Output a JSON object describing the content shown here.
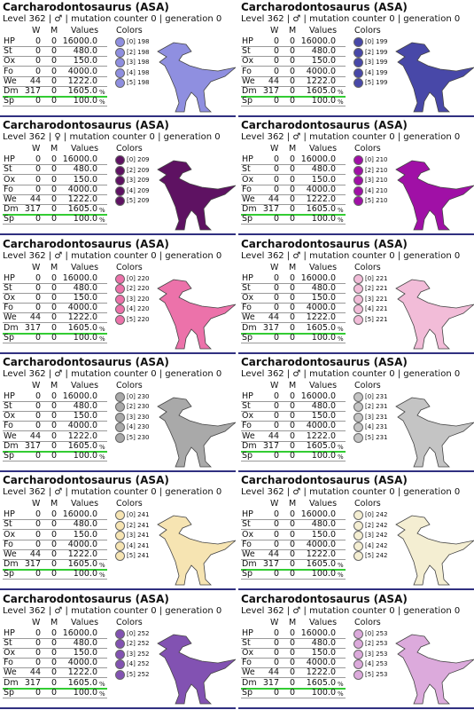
{
  "cards": [
    {
      "title": "Carcharodontosaurus (ASA)",
      "subtitle": "Level 362 | ♂ | mutation counter 0 | generation 0",
      "headers": [
        "W",
        "M",
        "Values",
        "Colors"
      ],
      "stats": [
        [
          "HP",
          "0",
          "0",
          "16000.0"
        ],
        [
          "St",
          "0",
          "0",
          "480.0"
        ],
        [
          "Ox",
          "0",
          "0",
          "150.0"
        ],
        [
          "Fo",
          "0",
          "0",
          "4000.0"
        ],
        [
          "We",
          "44",
          "0",
          "1222.0"
        ],
        [
          "Dm",
          "317",
          "0",
          "1605.0",
          "%"
        ],
        [
          "Sp",
          "0",
          "0",
          "100.0",
          "%"
        ]
      ],
      "colors": [
        "[0] 198",
        "[2] 198",
        "[3] 198",
        "[4] 198",
        "[5] 198"
      ],
      "swatch": "#8f8fe0"
    },
    {
      "title": "Carcharodontosaurus (ASA)",
      "subtitle": "Level 362 | ♂ | mutation counter 0 | generation 0",
      "headers": [
        "W",
        "M",
        "Values",
        "Colors"
      ],
      "stats": [
        [
          "HP",
          "0",
          "0",
          "16000.0"
        ],
        [
          "St",
          "0",
          "0",
          "480.0"
        ],
        [
          "Ox",
          "0",
          "0",
          "150.0"
        ],
        [
          "Fo",
          "0",
          "0",
          "4000.0"
        ],
        [
          "We",
          "44",
          "0",
          "1222.0"
        ],
        [
          "Dm",
          "317",
          "0",
          "1605.0",
          "%"
        ],
        [
          "Sp",
          "0",
          "0",
          "100.0",
          "%"
        ]
      ],
      "colors": [
        "[0] 199",
        "[2] 199",
        "[3] 199",
        "[4] 199",
        "[5] 199"
      ],
      "swatch": "#4848a8"
    },
    {
      "title": "Carcharodontosaurus (ASA)",
      "subtitle": "Level 362 | ♀ | mutation counter 0 | generation 0",
      "headers": [
        "W",
        "M",
        "Values",
        "Colors"
      ],
      "stats": [
        [
          "HP",
          "0",
          "0",
          "16000.0"
        ],
        [
          "St",
          "0",
          "0",
          "480.0"
        ],
        [
          "Ox",
          "0",
          "0",
          "150.0"
        ],
        [
          "Fo",
          "0",
          "0",
          "4000.0"
        ],
        [
          "We",
          "44",
          "0",
          "1222.0"
        ],
        [
          "Dm",
          "317",
          "0",
          "1605.0",
          "%"
        ],
        [
          "Sp",
          "0",
          "0",
          "100.0",
          "%"
        ]
      ],
      "colors": [
        "[0] 209",
        "[2] 209",
        "[3] 209",
        "[4] 209",
        "[5] 209"
      ],
      "swatch": "#5e1262"
    },
    {
      "title": "Carcharodontosaurus (ASA)",
      "subtitle": "Level 362 | ♂ | mutation counter 0 | generation 0",
      "headers": [
        "W",
        "M",
        "Values",
        "Colors"
      ],
      "stats": [
        [
          "HP",
          "0",
          "0",
          "16000.0"
        ],
        [
          "St",
          "0",
          "0",
          "480.0"
        ],
        [
          "Ox",
          "0",
          "0",
          "150.0"
        ],
        [
          "Fo",
          "0",
          "0",
          "4000.0"
        ],
        [
          "We",
          "44",
          "0",
          "1222.0"
        ],
        [
          "Dm",
          "317",
          "0",
          "1605.0",
          "%"
        ],
        [
          "Sp",
          "0",
          "0",
          "100.0",
          "%"
        ]
      ],
      "colors": [
        "[0] 210",
        "[2] 210",
        "[3] 210",
        "[4] 210",
        "[5] 210"
      ],
      "swatch": "#a010a6"
    },
    {
      "title": "Carcharodontosaurus (ASA)",
      "subtitle": "Level 362 | ♂ | mutation counter 0 | generation 0",
      "headers": [
        "W",
        "M",
        "Values",
        "Colors"
      ],
      "stats": [
        [
          "HP",
          "0",
          "0",
          "16000.0"
        ],
        [
          "St",
          "0",
          "0",
          "480.0"
        ],
        [
          "Ox",
          "0",
          "0",
          "150.0"
        ],
        [
          "Fo",
          "0",
          "0",
          "4000.0"
        ],
        [
          "We",
          "44",
          "0",
          "1222.0"
        ],
        [
          "Dm",
          "317",
          "0",
          "1605.0",
          "%"
        ],
        [
          "Sp",
          "0",
          "0",
          "100.0",
          "%"
        ]
      ],
      "colors": [
        "[0] 220",
        "[2] 220",
        "[3] 220",
        "[4] 220",
        "[5] 220"
      ],
      "swatch": "#ec72aa"
    },
    {
      "title": "Carcharodontosaurus (ASA)",
      "subtitle": "Level 362 | ♂ | mutation counter 0 | generation 0",
      "headers": [
        "W",
        "M",
        "Values",
        "Colors"
      ],
      "stats": [
        [
          "HP",
          "0",
          "0",
          "16000.0"
        ],
        [
          "St",
          "0",
          "0",
          "480.0"
        ],
        [
          "Ox",
          "0",
          "0",
          "150.0"
        ],
        [
          "Fo",
          "0",
          "0",
          "4000.0"
        ],
        [
          "We",
          "44",
          "0",
          "1222.0"
        ],
        [
          "Dm",
          "317",
          "0",
          "1605.0",
          "%"
        ],
        [
          "Sp",
          "0",
          "0",
          "100.0",
          "%"
        ]
      ],
      "colors": [
        "[0] 221",
        "[2] 221",
        "[3] 221",
        "[4] 221",
        "[5] 221"
      ],
      "swatch": "#f2bcd8"
    },
    {
      "title": "Carcharodontosaurus (ASA)",
      "subtitle": "Level 362 | ♂ | mutation counter 0 | generation 0",
      "headers": [
        "W",
        "M",
        "Values",
        "Colors"
      ],
      "stats": [
        [
          "HP",
          "0",
          "0",
          "16000.0"
        ],
        [
          "St",
          "0",
          "0",
          "480.0"
        ],
        [
          "Ox",
          "0",
          "0",
          "150.0"
        ],
        [
          "Fo",
          "0",
          "0",
          "4000.0"
        ],
        [
          "We",
          "44",
          "0",
          "1222.0"
        ],
        [
          "Dm",
          "317",
          "0",
          "1605.0",
          "%"
        ],
        [
          "Sp",
          "0",
          "0",
          "100.0",
          "%"
        ]
      ],
      "colors": [
        "[0] 230",
        "[2] 230",
        "[3] 230",
        "[4] 230",
        "[5] 230"
      ],
      "swatch": "#a9a9a9"
    },
    {
      "title": "Carcharodontosaurus (ASA)",
      "subtitle": "Level 362 | ♂ | mutation counter 0 | generation 0",
      "headers": [
        "W",
        "M",
        "Values",
        "Colors"
      ],
      "stats": [
        [
          "HP",
          "0",
          "0",
          "16000.0"
        ],
        [
          "St",
          "0",
          "0",
          "480.0"
        ],
        [
          "Ox",
          "0",
          "0",
          "150.0"
        ],
        [
          "Fo",
          "0",
          "0",
          "4000.0"
        ],
        [
          "We",
          "44",
          "0",
          "1222.0"
        ],
        [
          "Dm",
          "317",
          "0",
          "1605.0",
          "%"
        ],
        [
          "Sp",
          "0",
          "0",
          "100.0",
          "%"
        ]
      ],
      "colors": [
        "[0] 231",
        "[2] 231",
        "[3] 231",
        "[4] 231",
        "[5] 231"
      ],
      "swatch": "#c4c4c4"
    },
    {
      "title": "Carcharodontosaurus (ASA)",
      "subtitle": "Level 362 | ♂ | mutation counter 0 | generation 0",
      "headers": [
        "W",
        "M",
        "Values",
        "Colors"
      ],
      "stats": [
        [
          "HP",
          "0",
          "0",
          "16000.0"
        ],
        [
          "St",
          "0",
          "0",
          "480.0"
        ],
        [
          "Ox",
          "0",
          "0",
          "150.0"
        ],
        [
          "Fo",
          "0",
          "0",
          "4000.0"
        ],
        [
          "We",
          "44",
          "0",
          "1222.0"
        ],
        [
          "Dm",
          "317",
          "0",
          "1605.0",
          "%"
        ],
        [
          "Sp",
          "0",
          "0",
          "100.0",
          "%"
        ]
      ],
      "colors": [
        "[0] 241",
        "[2] 241",
        "[3] 241",
        "[4] 241",
        "[5] 241"
      ],
      "swatch": "#f6e4b2"
    },
    {
      "title": "Carcharodontosaurus (ASA)",
      "subtitle": "Level 362 | ♂ | mutation counter 0 | generation 0",
      "headers": [
        "W",
        "M",
        "Values",
        "Colors"
      ],
      "stats": [
        [
          "HP",
          "0",
          "0",
          "16000.0"
        ],
        [
          "St",
          "0",
          "0",
          "480.0"
        ],
        [
          "Ox",
          "0",
          "0",
          "150.0"
        ],
        [
          "Fo",
          "0",
          "0",
          "4000.0"
        ],
        [
          "We",
          "44",
          "0",
          "1222.0"
        ],
        [
          "Dm",
          "317",
          "0",
          "1605.0",
          "%"
        ],
        [
          "Sp",
          "0",
          "0",
          "100.0",
          "%"
        ]
      ],
      "colors": [
        "[0] 242",
        "[2] 242",
        "[3] 242",
        "[4] 242",
        "[5] 242"
      ],
      "swatch": "#f4eed2"
    },
    {
      "title": "Carcharodontosaurus (ASA)",
      "subtitle": "Level 362 | ♂ | mutation counter 0 | generation 0",
      "headers": [
        "W",
        "M",
        "Values",
        "Colors"
      ],
      "stats": [
        [
          "HP",
          "0",
          "0",
          "16000.0"
        ],
        [
          "St",
          "0",
          "0",
          "480.0"
        ],
        [
          "Ox",
          "0",
          "0",
          "150.0"
        ],
        [
          "Fo",
          "0",
          "0",
          "4000.0"
        ],
        [
          "We",
          "44",
          "0",
          "1222.0"
        ],
        [
          "Dm",
          "317",
          "0",
          "1605.0",
          "%"
        ],
        [
          "Sp",
          "0",
          "0",
          "100.0",
          "%"
        ]
      ],
      "colors": [
        "[0] 252",
        "[2] 252",
        "[3] 252",
        "[4] 252",
        "[5] 252"
      ],
      "swatch": "#8252b2"
    },
    {
      "title": "Carcharodontosaurus (ASA)",
      "subtitle": "Level 362 | ♂ | mutation counter 0 | generation 0",
      "headers": [
        "W",
        "M",
        "Values",
        "Colors"
      ],
      "stats": [
        [
          "HP",
          "0",
          "0",
          "16000.0"
        ],
        [
          "St",
          "0",
          "0",
          "480.0"
        ],
        [
          "Ox",
          "0",
          "0",
          "150.0"
        ],
        [
          "Fo",
          "0",
          "0",
          "4000.0"
        ],
        [
          "We",
          "44",
          "0",
          "1222.0"
        ],
        [
          "Dm",
          "317",
          "0",
          "1605.0",
          "%"
        ],
        [
          "Sp",
          "0",
          "0",
          "100.0",
          "%"
        ]
      ],
      "colors": [
        "[0] 253",
        "[2] 253",
        "[3] 253",
        "[4] 253",
        "[5] 253"
      ],
      "swatch": "#dcaadc"
    }
  ]
}
